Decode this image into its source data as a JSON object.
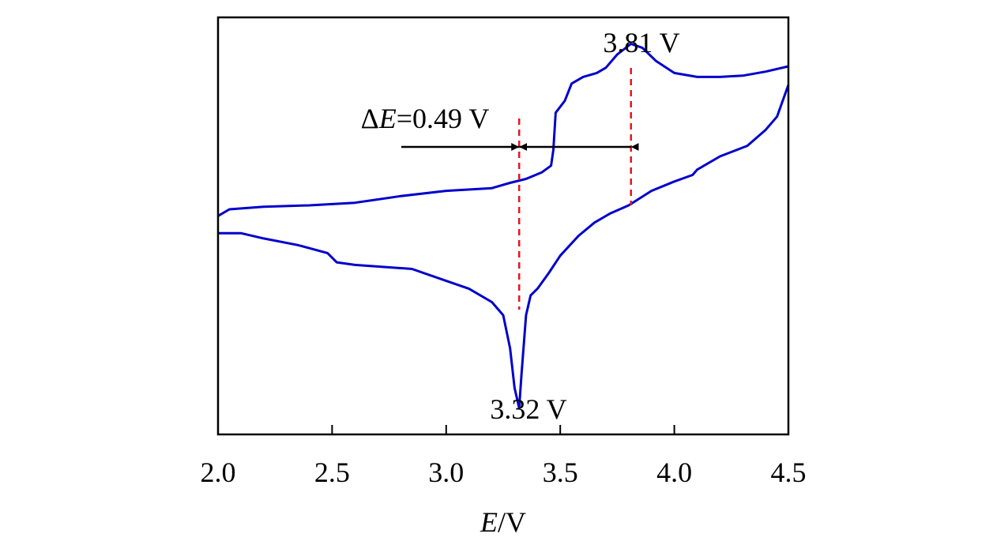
{
  "chart_data": {
    "type": "line",
    "title": "",
    "xlabel_italic": "E",
    "xlabel_unit": "/V",
    "ylabel": "",
    "xlim": [
      2.0,
      4.5
    ],
    "x_ticks": [
      "2.0",
      "2.5",
      "3.0",
      "3.5",
      "4.0",
      "4.5"
    ],
    "grid": false,
    "legend": false,
    "series_color": "#0000cc",
    "marker_color": "#e8141e",
    "series": [
      {
        "name": "",
        "segment": "anodic",
        "points": [
          [
            2.0,
            0.25
          ],
          [
            2.05,
            0.3
          ],
          [
            2.2,
            0.32
          ],
          [
            2.4,
            0.33
          ],
          [
            2.6,
            0.35
          ],
          [
            2.8,
            0.4
          ],
          [
            3.0,
            0.44
          ],
          [
            3.2,
            0.46
          ],
          [
            3.28,
            0.5
          ],
          [
            3.35,
            0.53
          ],
          [
            3.42,
            0.58
          ],
          [
            3.46,
            0.63
          ],
          [
            3.47,
            0.75
          ],
          [
            3.48,
            1.03
          ],
          [
            3.52,
            1.12
          ],
          [
            3.55,
            1.25
          ],
          [
            3.6,
            1.3
          ],
          [
            3.66,
            1.33
          ],
          [
            3.7,
            1.37
          ],
          [
            3.75,
            1.47
          ],
          [
            3.81,
            1.55
          ],
          [
            3.86,
            1.52
          ],
          [
            3.92,
            1.42
          ],
          [
            4.0,
            1.33
          ],
          [
            4.1,
            1.3
          ],
          [
            4.2,
            1.3
          ],
          [
            4.3,
            1.31
          ],
          [
            4.4,
            1.34
          ],
          [
            4.5,
            1.38
          ]
        ]
      },
      {
        "name": "",
        "segment": "cathodic",
        "points": [
          [
            4.5,
            1.24
          ],
          [
            4.45,
            1.0
          ],
          [
            4.4,
            0.9
          ],
          [
            4.32,
            0.78
          ],
          [
            4.2,
            0.7
          ],
          [
            4.1,
            0.6
          ],
          [
            4.08,
            0.56
          ],
          [
            4.0,
            0.51
          ],
          [
            3.9,
            0.44
          ],
          [
            3.8,
            0.33
          ],
          [
            3.72,
            0.27
          ],
          [
            3.65,
            0.2
          ],
          [
            3.58,
            0.1
          ],
          [
            3.5,
            -0.05
          ],
          [
            3.45,
            -0.18
          ],
          [
            3.4,
            -0.3
          ],
          [
            3.37,
            -0.35
          ],
          [
            3.35,
            -0.5
          ],
          [
            3.33,
            -0.95
          ],
          [
            3.32,
            -1.2
          ],
          [
            3.3,
            -1.05
          ],
          [
            3.28,
            -0.75
          ],
          [
            3.25,
            -0.5
          ],
          [
            3.2,
            -0.4
          ],
          [
            3.1,
            -0.3
          ],
          [
            3.0,
            -0.24
          ],
          [
            2.85,
            -0.15
          ],
          [
            2.6,
            -0.12
          ],
          [
            2.52,
            -0.1
          ],
          [
            2.48,
            -0.03
          ],
          [
            2.35,
            0.03
          ],
          [
            2.2,
            0.08
          ],
          [
            2.1,
            0.12
          ],
          [
            2.0,
            0.12
          ]
        ]
      }
    ],
    "annotations": {
      "peak_anodic": {
        "x": 3.81,
        "label": "3.81 V"
      },
      "peak_cathodic": {
        "x": 3.32,
        "label": "3.32 V"
      },
      "delta_symbol": "Δ",
      "delta_italic": "E",
      "delta_value": "=0.49 V"
    }
  }
}
